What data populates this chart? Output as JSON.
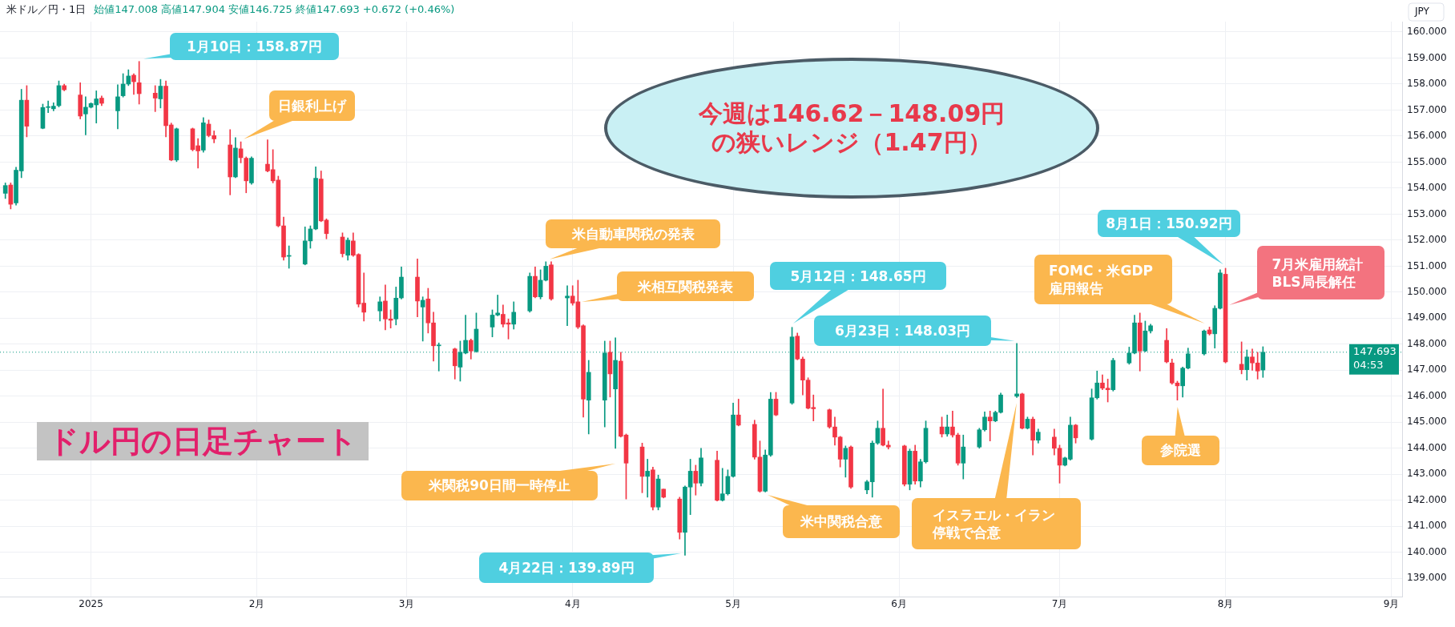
{
  "chart_data": {
    "type": "candlestick",
    "title": "米ドル／円・1日",
    "subtitle": "始値147.008 高値147.904 安値146.725 終値147.693 +0.672 (+0.46%)",
    "ylabel": "JPY",
    "x": [
      "2024-12-16",
      "2024-12-17",
      "2024-12-18",
      "2024-12-19",
      "2024-12-20",
      "2024-12-23",
      "2024-12-24",
      "2024-12-25",
      "2024-12-26",
      "2024-12-27",
      "2024-12-30",
      "2024-12-31",
      "2025-01-01",
      "2025-01-02",
      "2025-01-03",
      "2025-01-06",
      "2025-01-07",
      "2025-01-08",
      "2025-01-09",
      "2025-01-10",
      "2025-01-13",
      "2025-01-14",
      "2025-01-15",
      "2025-01-16",
      "2025-01-17",
      "2025-01-20",
      "2025-01-21",
      "2025-01-22",
      "2025-01-23",
      "2025-01-24",
      "2025-01-27",
      "2025-01-28",
      "2025-01-29",
      "2025-01-30",
      "2025-01-31",
      "2025-02-03",
      "2025-02-04",
      "2025-02-05",
      "2025-02-06",
      "2025-02-07",
      "2025-02-10",
      "2025-02-11",
      "2025-02-12",
      "2025-02-13",
      "2025-02-14",
      "2025-02-17",
      "2025-02-18",
      "2025-02-19",
      "2025-02-20",
      "2025-02-21",
      "2025-02-24",
      "2025-02-25",
      "2025-02-26",
      "2025-02-27",
      "2025-02-28",
      "2025-03-03",
      "2025-03-04",
      "2025-03-05",
      "2025-03-06",
      "2025-03-07",
      "2025-03-10",
      "2025-03-11",
      "2025-03-12",
      "2025-03-13",
      "2025-03-14",
      "2025-03-17",
      "2025-03-18",
      "2025-03-19",
      "2025-03-20",
      "2025-03-21",
      "2025-03-24",
      "2025-03-25",
      "2025-03-26",
      "2025-03-27",
      "2025-03-28",
      "2025-03-31",
      "2025-04-01",
      "2025-04-02",
      "2025-04-03",
      "2025-04-04",
      "2025-04-07",
      "2025-04-08",
      "2025-04-09",
      "2025-04-10",
      "2025-04-11",
      "2025-04-14",
      "2025-04-15",
      "2025-04-16",
      "2025-04-17",
      "2025-04-18",
      "2025-04-21",
      "2025-04-22",
      "2025-04-23",
      "2025-04-24",
      "2025-04-25",
      "2025-04-28",
      "2025-04-29",
      "2025-04-30",
      "2025-05-01",
      "2025-05-02",
      "2025-05-05",
      "2025-05-06",
      "2025-05-07",
      "2025-05-08",
      "2025-05-09",
      "2025-05-12",
      "2025-05-13",
      "2025-05-14",
      "2025-05-15",
      "2025-05-16",
      "2025-05-19",
      "2025-05-20",
      "2025-05-21",
      "2025-05-22",
      "2025-05-23",
      "2025-05-26",
      "2025-05-27",
      "2025-05-28",
      "2025-05-29",
      "2025-05-30",
      "2025-06-02",
      "2025-06-03",
      "2025-06-04",
      "2025-06-05",
      "2025-06-06",
      "2025-06-09",
      "2025-06-10",
      "2025-06-11",
      "2025-06-12",
      "2025-06-13",
      "2025-06-16",
      "2025-06-17",
      "2025-06-18",
      "2025-06-19",
      "2025-06-20",
      "2025-06-23",
      "2025-06-24",
      "2025-06-25",
      "2025-06-26",
      "2025-06-27",
      "2025-06-30",
      "2025-07-01",
      "2025-07-02",
      "2025-07-03",
      "2025-07-04",
      "2025-07-07",
      "2025-07-08",
      "2025-07-09",
      "2025-07-10",
      "2025-07-11",
      "2025-07-14",
      "2025-07-15",
      "2025-07-16",
      "2025-07-17",
      "2025-07-18",
      "2025-07-21",
      "2025-07-22",
      "2025-07-23",
      "2025-07-24",
      "2025-07-25",
      "2025-07-28",
      "2025-07-29",
      "2025-07-30",
      "2025-07-31",
      "2025-08-01",
      "2025-08-04",
      "2025-08-05",
      "2025-08-06",
      "2025-08-07",
      "2025-08-08"
    ],
    "ohlc": [
      [
        153.8,
        154.2,
        153.6,
        154.1
      ],
      [
        154.12,
        154.2,
        153.2,
        153.38
      ],
      [
        153.43,
        154.8,
        153.35,
        154.69
      ],
      [
        154.66,
        157.8,
        154.4,
        157.38
      ],
      [
        157.38,
        157.94,
        155.97,
        156.38
      ],
      [
        156.3,
        157.23,
        156.28,
        157.1
      ],
      [
        157.1,
        157.35,
        156.9,
        157.13
      ],
      [
        157.05,
        157.28,
        156.97,
        157.15
      ],
      [
        157.17,
        158.12,
        157.12,
        157.94
      ],
      [
        157.94,
        158.0,
        157.74,
        157.78
      ],
      [
        157.58,
        158.05,
        156.66,
        156.77
      ],
      [
        156.85,
        157.51,
        156.05,
        157.11
      ],
      [
        157.11,
        157.28,
        157.08,
        157.25
      ],
      [
        157.2,
        157.74,
        156.5,
        157.43
      ],
      [
        157.46,
        157.54,
        157.17,
        157.26
      ],
      [
        156.97,
        157.97,
        156.28,
        157.51
      ],
      [
        157.55,
        158.4,
        157.5,
        158.0
      ],
      [
        158.0,
        158.55,
        157.94,
        158.31
      ],
      [
        158.34,
        158.4,
        157.6,
        158.09
      ],
      [
        158.05,
        158.87,
        157.23,
        157.63
      ],
      [
        157.65,
        157.94,
        156.94,
        157.46
      ],
      [
        157.43,
        158.18,
        157.08,
        157.92
      ],
      [
        157.92,
        158.12,
        155.97,
        156.4
      ],
      [
        156.43,
        156.5,
        155.05,
        155.08
      ],
      [
        155.08,
        156.31,
        155.02,
        156.28
      ],
      [
        156.28,
        156.31,
        155.43,
        155.48
      ],
      [
        155.63,
        155.9,
        154.77,
        155.43
      ],
      [
        155.46,
        156.71,
        155.38,
        156.51
      ],
      [
        156.46,
        156.62,
        155.97,
        156.02
      ],
      [
        156.02,
        156.2,
        155.74,
        155.89
      ],
      [
        155.66,
        156.25,
        153.74,
        154.43
      ],
      [
        154.43,
        155.94,
        154.4,
        155.54
      ],
      [
        155.51,
        155.78,
        154.97,
        155.17
      ],
      [
        155.15,
        155.2,
        153.82,
        154.28
      ],
      [
        154.2,
        155.2,
        154.15,
        155.15
      ],
      [
        154.92,
        155.86,
        154.62,
        154.66
      ],
      [
        154.71,
        155.48,
        154.2,
        154.28
      ],
      [
        154.31,
        154.46,
        152.51,
        152.55
      ],
      [
        152.55,
        152.89,
        151.23,
        151.35
      ],
      [
        151.38,
        151.78,
        150.92,
        151.4
      ],
      [
        151.08,
        152.51,
        151.05,
        151.97
      ],
      [
        151.97,
        152.55,
        151.69,
        152.43
      ],
      [
        152.43,
        154.82,
        152.4,
        154.38
      ],
      [
        154.35,
        154.66,
        152.71,
        152.74
      ],
      [
        152.77,
        152.82,
        152.05,
        152.25
      ],
      [
        152.12,
        152.28,
        151.35,
        151.48
      ],
      [
        151.42,
        152.09,
        151.23,
        152.0
      ],
      [
        151.97,
        152.28,
        151.38,
        151.42
      ],
      [
        151.45,
        151.48,
        149.43,
        149.54
      ],
      [
        149.58,
        150.74,
        148.89,
        149.23
      ],
      [
        149.28,
        149.82,
        148.89,
        149.63
      ],
      [
        149.66,
        150.28,
        148.55,
        148.97
      ],
      [
        148.97,
        149.32,
        148.62,
        148.92
      ],
      [
        148.97,
        150.2,
        148.74,
        149.77
      ],
      [
        149.78,
        150.97,
        149.74,
        150.58
      ],
      [
        150.58,
        151.28,
        149.05,
        149.66
      ],
      [
        149.43,
        149.82,
        148.12,
        149.69
      ],
      [
        149.74,
        150.15,
        148.43,
        148.82
      ],
      [
        148.82,
        149.23,
        147.35,
        147.94
      ],
      [
        147.94,
        148.05,
        146.97,
        147.97
      ],
      [
        147.82,
        147.85,
        146.66,
        147.17
      ],
      [
        147.12,
        148.12,
        146.58,
        147.69
      ],
      [
        147.66,
        149.12,
        147.63,
        148.15
      ],
      [
        148.15,
        148.2,
        147.43,
        147.74
      ],
      [
        147.72,
        149.2,
        147.69,
        148.58
      ],
      [
        148.66,
        149.32,
        148.28,
        149.12
      ],
      [
        149.12,
        149.89,
        149.09,
        149.2
      ],
      [
        149.15,
        149.51,
        148.66,
        148.77
      ],
      [
        148.82,
        148.97,
        148.2,
        148.77
      ],
      [
        148.77,
        149.63,
        148.58,
        149.23
      ],
      [
        149.28,
        150.74,
        149.23,
        150.61
      ],
      [
        150.61,
        150.97,
        149.78,
        149.82
      ],
      [
        149.82,
        150.86,
        149.74,
        150.46
      ],
      [
        150.46,
        151.17,
        150.43,
        151.0
      ],
      [
        151.05,
        151.17,
        149.69,
        149.74
      ],
      [
        149.78,
        150.25,
        148.71,
        149.85
      ],
      [
        149.85,
        150.25,
        149.5,
        149.58
      ],
      [
        149.63,
        150.46,
        148.6,
        148.66
      ],
      [
        148.71,
        148.75,
        145.2,
        145.89
      ],
      [
        145.85,
        147.38,
        144.55,
        146.92
      ],
      [
        145.85,
        148.12,
        144.82,
        147.66
      ],
      [
        147.69,
        148.12,
        145.97,
        146.86
      ],
      [
        146.28,
        148.25,
        144.0,
        147.38
      ],
      [
        147.35,
        147.69,
        144.43,
        144.46
      ],
      [
        144.51,
        144.55,
        142.05,
        143.43
      ],
      [
        144.05,
        144.2,
        142.29,
        142.92
      ],
      [
        142.92,
        143.58,
        142.12,
        143.12
      ],
      [
        143.17,
        143.28,
        141.63,
        141.74
      ],
      [
        141.74,
        142.97,
        141.63,
        142.82
      ],
      [
        142.43,
        142.43,
        142.09,
        142.12
      ],
      [
        142.05,
        142.12,
        140.51,
        140.77
      ],
      [
        140.77,
        142.55,
        139.89,
        142.51
      ],
      [
        142.51,
        143.58,
        141.45,
        143.12
      ],
      [
        143.12,
        143.35,
        142.2,
        142.66
      ],
      [
        142.66,
        144.0,
        142.55,
        143.63
      ],
      [
        143.54,
        143.89,
        141.97,
        142.0
      ],
      [
        142.0,
        143.23,
        141.97,
        142.25
      ],
      [
        142.25,
        143.17,
        142.2,
        142.92
      ],
      [
        142.92,
        145.74,
        142.89,
        145.28
      ],
      [
        145.28,
        145.89,
        144.86,
        144.89
      ],
      [
        144.92,
        145.08,
        143.58,
        143.66
      ],
      [
        143.66,
        144.28,
        142.31,
        142.35
      ],
      [
        142.35,
        143.94,
        142.32,
        143.74
      ],
      [
        143.74,
        146.15,
        143.69,
        145.89
      ],
      [
        145.89,
        146.15,
        145.25,
        145.28
      ],
      [
        145.74,
        148.65,
        145.69,
        148.28
      ],
      [
        148.31,
        148.43,
        147.4,
        147.43
      ],
      [
        147.43,
        147.51,
        146.05,
        146.62
      ],
      [
        146.62,
        146.71,
        145.51,
        145.54
      ],
      [
        145.57,
        146.05,
        145.05,
        145.52
      ],
      [
        145.48,
        145.51,
        144.77,
        144.82
      ],
      [
        144.82,
        145.2,
        144.12,
        144.43
      ],
      [
        144.43,
        144.46,
        143.28,
        143.58
      ],
      [
        143.58,
        144.09,
        142.89,
        144.0
      ],
      [
        144.05,
        144.09,
        142.46,
        142.51
      ],
      [
        142.4,
        142.77,
        142.25,
        142.71
      ],
      [
        142.71,
        144.28,
        142.12,
        144.2
      ],
      [
        144.2,
        145.05,
        144.15,
        144.77
      ],
      [
        144.77,
        146.28,
        144.09,
        144.12
      ],
      [
        144.12,
        144.28,
        143.97,
        144.05
      ],
      [
        144.09,
        144.12,
        142.55,
        142.62
      ],
      [
        142.62,
        143.97,
        142.4,
        143.89
      ],
      [
        143.89,
        144.12,
        142.62,
        142.74
      ],
      [
        142.74,
        143.58,
        142.51,
        143.48
      ],
      [
        143.48,
        145.05,
        143.43,
        144.77
      ],
      [
        144.82,
        145.2,
        144.43,
        144.55
      ],
      [
        144.55,
        145.28,
        144.46,
        144.82
      ],
      [
        144.82,
        145.43,
        144.43,
        144.51
      ],
      [
        144.51,
        144.58,
        143.35,
        143.43
      ],
      [
        143.43,
        144.51,
        142.82,
        144.05
      ],
      [
        144.05,
        144.77,
        144.0,
        144.71
      ],
      [
        144.71,
        145.4,
        144.66,
        145.2
      ],
      [
        145.2,
        145.43,
        144.28,
        145.05
      ],
      [
        145.05,
        145.43,
        145.02,
        145.38
      ],
      [
        145.38,
        146.12,
        145.35,
        146.05
      ],
      [
        146.0,
        148.03,
        145.95,
        146.09
      ],
      [
        146.09,
        146.12,
        144.74,
        144.77
      ],
      [
        144.77,
        145.2,
        144.74,
        145.12
      ],
      [
        145.12,
        145.2,
        143.74,
        144.31
      ],
      [
        144.31,
        144.74,
        144.2,
        144.62
      ],
      [
        144.43,
        144.74,
        143.74,
        144.0
      ],
      [
        144.0,
        144.12,
        142.66,
        143.35
      ],
      [
        143.35,
        143.66,
        143.32,
        143.63
      ],
      [
        143.58,
        145.2,
        143.54,
        144.89
      ],
      [
        144.89,
        144.92,
        144.2,
        144.4
      ],
      [
        144.35,
        146.28,
        144.31,
        145.94
      ],
      [
        145.94,
        146.97,
        145.89,
        146.51
      ],
      [
        146.51,
        146.82,
        146.25,
        146.31
      ],
      [
        146.31,
        146.66,
        145.78,
        146.25
      ],
      [
        146.25,
        147.46,
        146.2,
        147.38
      ],
      [
        147.28,
        147.89,
        147.23,
        147.66
      ],
      [
        147.66,
        149.12,
        147.63,
        148.82
      ],
      [
        148.82,
        149.2,
        146.97,
        147.74
      ],
      [
        147.74,
        148.89,
        147.71,
        148.51
      ],
      [
        148.51,
        148.77,
        148.43,
        148.71
      ],
      [
        148.15,
        148.6,
        147.28,
        147.32
      ],
      [
        147.28,
        147.43,
        146.46,
        146.51
      ],
      [
        146.51,
        146.58,
        145.85,
        146.4
      ],
      [
        146.4,
        147.12,
        145.97,
        147.08
      ],
      [
        147.08,
        147.85,
        147.05,
        147.63
      ],
      [
        147.63,
        148.55,
        147.58,
        148.51
      ],
      [
        148.55,
        148.66,
        148.35,
        148.4
      ],
      [
        148.4,
        149.48,
        147.85,
        149.38
      ],
      [
        149.38,
        150.86,
        149.35,
        150.74
      ],
      [
        150.69,
        150.92,
        147.28,
        147.32
      ],
      [
        147.23,
        148.09,
        146.86,
        147.02
      ],
      [
        147.02,
        147.78,
        146.62,
        147.51
      ],
      [
        147.51,
        147.82,
        147.0,
        147.28
      ],
      [
        147.28,
        147.69,
        146.66,
        146.97
      ],
      [
        147.008,
        147.904,
        146.725,
        147.693
      ]
    ],
    "xlim": [
      "2024-12-15",
      "2025-09-03"
    ],
    "xticks": [
      {
        "value": "2025-01-01",
        "label": "2025"
      },
      {
        "value": "2025-02-01",
        "label": "2月"
      },
      {
        "value": "2025-03-01",
        "label": "3月"
      },
      {
        "value": "2025-04-01",
        "label": "4月"
      },
      {
        "value": "2025-05-01",
        "label": "5月"
      },
      {
        "value": "2025-06-01",
        "label": "6月"
      },
      {
        "value": "2025-07-01",
        "label": "7月"
      },
      {
        "value": "2025-08-01",
        "label": "8月"
      },
      {
        "value": "2025-09-01",
        "label": "9月"
      }
    ],
    "ylim": [
      138.3,
      160.4
    ],
    "yticks": [
      {
        "value": 139,
        "label": "139.000"
      },
      {
        "value": 140,
        "label": "140.000"
      },
      {
        "value": 141,
        "label": "141.000"
      },
      {
        "value": 142,
        "label": "142.000"
      },
      {
        "value": 143,
        "label": "143.000"
      },
      {
        "value": 144,
        "label": "144.000"
      },
      {
        "value": 145,
        "label": "145.000"
      },
      {
        "value": 146,
        "label": "146.000"
      },
      {
        "value": 147,
        "label": "147.000"
      },
      {
        "value": 148,
        "label": "148.000"
      },
      {
        "value": 149,
        "label": "149.000"
      },
      {
        "value": 150,
        "label": "150.000"
      },
      {
        "value": 151,
        "label": "151.000"
      },
      {
        "value": 152,
        "label": "152.000"
      },
      {
        "value": 153,
        "label": "153.000"
      },
      {
        "value": 154,
        "label": "154.000"
      },
      {
        "value": 155,
        "label": "155.000"
      },
      {
        "value": 156,
        "label": "156.000"
      },
      {
        "value": 157,
        "label": "157.000"
      },
      {
        "value": 158,
        "label": "158.000"
      },
      {
        "value": 159,
        "label": "159.000"
      },
      {
        "value": 160,
        "label": "160.000"
      }
    ],
    "grid": true,
    "legend": false,
    "ref_lines": [
      {
        "axis": "y",
        "value": 147.693,
        "label": "147.693\n04:53",
        "color": "#089981",
        "line_style": "dotted"
      }
    ],
    "annotations": [
      "1月10日：158.87円",
      "日銀利上げ",
      "米自動車関税の発表",
      "米相互関税発表",
      "米関税90日間一時停止",
      "4月22日：139.89円",
      "5月12日：148.65円",
      "米中関税合意",
      "6月23日：148.03円",
      "イスラエル・イラン停戦で合意",
      "FOMC・米GDP雇用報告",
      "参院選",
      "8月1日：150.92円",
      "7月米雇用統計BLS局長解任",
      "今週は146.62－148.09円の狭いレンジ（1.47円）",
      "ドル円の日足チャート"
    ]
  }
}
